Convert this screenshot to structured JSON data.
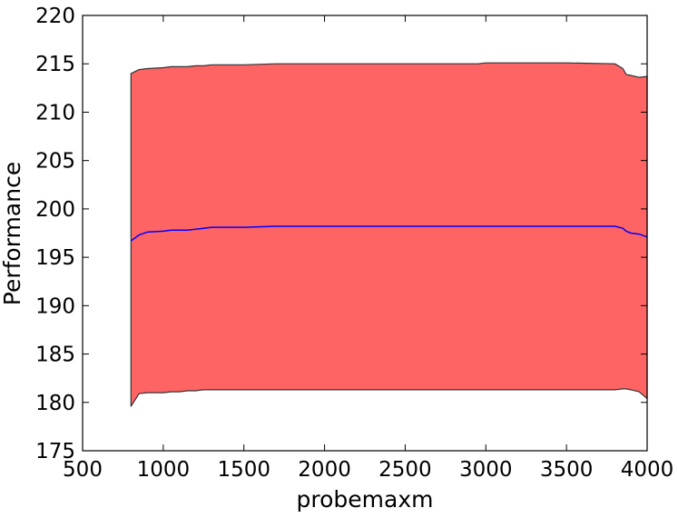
{
  "chart_data": {
    "type": "area",
    "title": "",
    "xlabel": "probemaxm",
    "ylabel": "Performance",
    "xlim": [
      500,
      4000
    ],
    "ylim": [
      175,
      220
    ],
    "xticks": [
      500,
      1000,
      1500,
      2000,
      2500,
      3000,
      3500,
      4000
    ],
    "yticks": [
      175,
      180,
      185,
      190,
      195,
      200,
      205,
      210,
      215,
      220
    ],
    "grid": false,
    "legend": "none",
    "colors": {
      "band_fill": "#ff6464",
      "band_edge": "#333333",
      "mean_line": "#0000ff"
    },
    "series": [
      {
        "x": [
          800,
          850,
          900,
          1000,
          1050,
          1100,
          1150,
          1200,
          1250,
          1300,
          1400,
          1500,
          1700,
          2000,
          2500,
          2900,
          2950,
          3000,
          3200,
          3500,
          3800,
          3850,
          3870,
          3900,
          3950,
          4000
        ],
        "y": [
          196.7,
          197.3,
          197.6,
          197.7,
          197.8,
          197.8,
          197.8,
          197.9,
          198.0,
          198.1,
          198.1,
          198.1,
          198.2,
          198.2,
          198.2,
          198.2,
          198.2,
          198.2,
          198.2,
          198.2,
          198.2,
          198.0,
          197.7,
          197.5,
          197.4,
          197.1
        ],
        "upper": [
          214.0,
          214.4,
          214.5,
          214.6,
          214.7,
          214.7,
          214.7,
          214.8,
          214.8,
          214.9,
          214.9,
          214.9,
          215.0,
          215.0,
          215.0,
          215.0,
          215.0,
          215.1,
          215.1,
          215.1,
          215.0,
          214.5,
          213.9,
          213.8,
          213.6,
          213.7
        ],
        "lower": [
          179.6,
          180.9,
          181.0,
          181.0,
          181.1,
          181.1,
          181.2,
          181.2,
          181.3,
          181.3,
          181.3,
          181.3,
          181.3,
          181.3,
          181.3,
          181.3,
          181.3,
          181.3,
          181.3,
          181.3,
          181.3,
          181.4,
          181.4,
          181.3,
          181.1,
          180.4
        ]
      }
    ]
  }
}
